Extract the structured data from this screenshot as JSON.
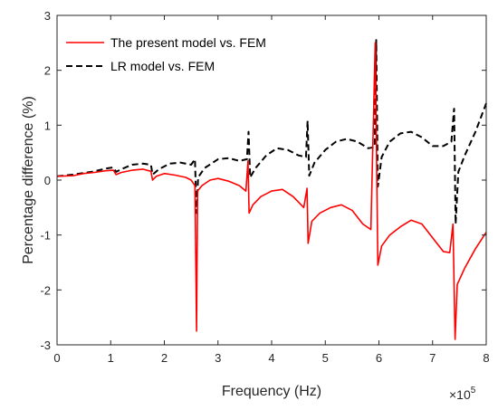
{
  "chart_data": {
    "type": "line",
    "xlabel": "Frequency (Hz)",
    "ylabel": "Percentage difference (%)",
    "x_exponent": {
      "base": "×10",
      "power": "5"
    },
    "xlim": [
      0,
      8
    ],
    "ylim": [
      -3,
      3
    ],
    "xticks": [
      0,
      1,
      2,
      3,
      4,
      5,
      6,
      7,
      8
    ],
    "yticks": [
      -3,
      -2,
      -1,
      0,
      1,
      2,
      3
    ],
    "grid": false,
    "legend_position": "top-left",
    "series": [
      {
        "name": "The present model vs. FEM",
        "color": "#ff0000",
        "dash": "solid",
        "points": [
          [
            0.0,
            0.07
          ],
          [
            0.3,
            0.08
          ],
          [
            0.5,
            0.12
          ],
          [
            0.7,
            0.14
          ],
          [
            0.9,
            0.17
          ],
          [
            1.05,
            0.18
          ],
          [
            1.1,
            0.1
          ],
          [
            1.2,
            0.14
          ],
          [
            1.4,
            0.18
          ],
          [
            1.6,
            0.2
          ],
          [
            1.75,
            0.16
          ],
          [
            1.78,
            0.0
          ],
          [
            1.85,
            0.07
          ],
          [
            2.0,
            0.12
          ],
          [
            2.2,
            0.09
          ],
          [
            2.4,
            0.05
          ],
          [
            2.5,
            0.0
          ],
          [
            2.57,
            -0.1
          ],
          [
            2.6,
            -2.75
          ],
          [
            2.62,
            -0.2
          ],
          [
            2.7,
            -0.1
          ],
          [
            2.85,
            0.0
          ],
          [
            3.0,
            0.03
          ],
          [
            3.2,
            -0.02
          ],
          [
            3.4,
            -0.1
          ],
          [
            3.52,
            -0.2
          ],
          [
            3.56,
            0.35
          ],
          [
            3.58,
            -0.6
          ],
          [
            3.65,
            -0.45
          ],
          [
            3.8,
            -0.3
          ],
          [
            4.0,
            -0.2
          ],
          [
            4.2,
            -0.17
          ],
          [
            4.4,
            -0.3
          ],
          [
            4.6,
            -0.5
          ],
          [
            4.66,
            -0.15
          ],
          [
            4.68,
            -1.15
          ],
          [
            4.75,
            -0.75
          ],
          [
            4.9,
            -0.6
          ],
          [
            5.1,
            -0.5
          ],
          [
            5.3,
            -0.45
          ],
          [
            5.5,
            -0.55
          ],
          [
            5.7,
            -0.8
          ],
          [
            5.85,
            -0.9
          ],
          [
            5.93,
            2.5
          ],
          [
            5.98,
            -1.55
          ],
          [
            6.05,
            -1.2
          ],
          [
            6.2,
            -1.0
          ],
          [
            6.4,
            -0.85
          ],
          [
            6.6,
            -0.73
          ],
          [
            6.8,
            -0.8
          ],
          [
            7.0,
            -1.05
          ],
          [
            7.2,
            -1.3
          ],
          [
            7.32,
            -1.32
          ],
          [
            7.38,
            -0.8
          ],
          [
            7.42,
            -2.9
          ],
          [
            7.46,
            -1.9
          ],
          [
            7.6,
            -1.6
          ],
          [
            7.8,
            -1.25
          ],
          [
            8.0,
            -0.95
          ]
        ]
      },
      {
        "name": "LR model vs. FEM",
        "color": "#000000",
        "dash": "dashed",
        "points": [
          [
            0.0,
            0.07
          ],
          [
            0.3,
            0.1
          ],
          [
            0.5,
            0.13
          ],
          [
            0.7,
            0.16
          ],
          [
            0.9,
            0.21
          ],
          [
            1.05,
            0.23
          ],
          [
            1.1,
            0.15
          ],
          [
            1.2,
            0.2
          ],
          [
            1.4,
            0.28
          ],
          [
            1.6,
            0.3
          ],
          [
            1.75,
            0.28
          ],
          [
            1.78,
            0.1
          ],
          [
            1.9,
            0.2
          ],
          [
            2.1,
            0.3
          ],
          [
            2.3,
            0.32
          ],
          [
            2.5,
            0.28
          ],
          [
            2.57,
            0.38
          ],
          [
            2.6,
            -0.6
          ],
          [
            2.63,
            0.05
          ],
          [
            2.75,
            0.22
          ],
          [
            3.0,
            0.38
          ],
          [
            3.2,
            0.4
          ],
          [
            3.4,
            0.35
          ],
          [
            3.54,
            0.38
          ],
          [
            3.57,
            0.88
          ],
          [
            3.6,
            0.05
          ],
          [
            3.7,
            0.22
          ],
          [
            3.9,
            0.45
          ],
          [
            4.1,
            0.58
          ],
          [
            4.3,
            0.55
          ],
          [
            4.5,
            0.45
          ],
          [
            4.64,
            0.42
          ],
          [
            4.67,
            1.08
          ],
          [
            4.7,
            0.08
          ],
          [
            4.8,
            0.32
          ],
          [
            5.0,
            0.55
          ],
          [
            5.2,
            0.7
          ],
          [
            5.4,
            0.75
          ],
          [
            5.6,
            0.7
          ],
          [
            5.8,
            0.58
          ],
          [
            5.92,
            0.6
          ],
          [
            5.95,
            2.55
          ],
          [
            5.98,
            -0.12
          ],
          [
            6.05,
            0.42
          ],
          [
            6.2,
            0.7
          ],
          [
            6.4,
            0.85
          ],
          [
            6.6,
            0.88
          ],
          [
            6.8,
            0.78
          ],
          [
            7.0,
            0.62
          ],
          [
            7.2,
            0.62
          ],
          [
            7.35,
            0.7
          ],
          [
            7.4,
            1.3
          ],
          [
            7.43,
            -0.8
          ],
          [
            7.48,
            0.15
          ],
          [
            7.6,
            0.45
          ],
          [
            7.8,
            0.88
          ],
          [
            8.0,
            1.4
          ]
        ]
      }
    ]
  }
}
